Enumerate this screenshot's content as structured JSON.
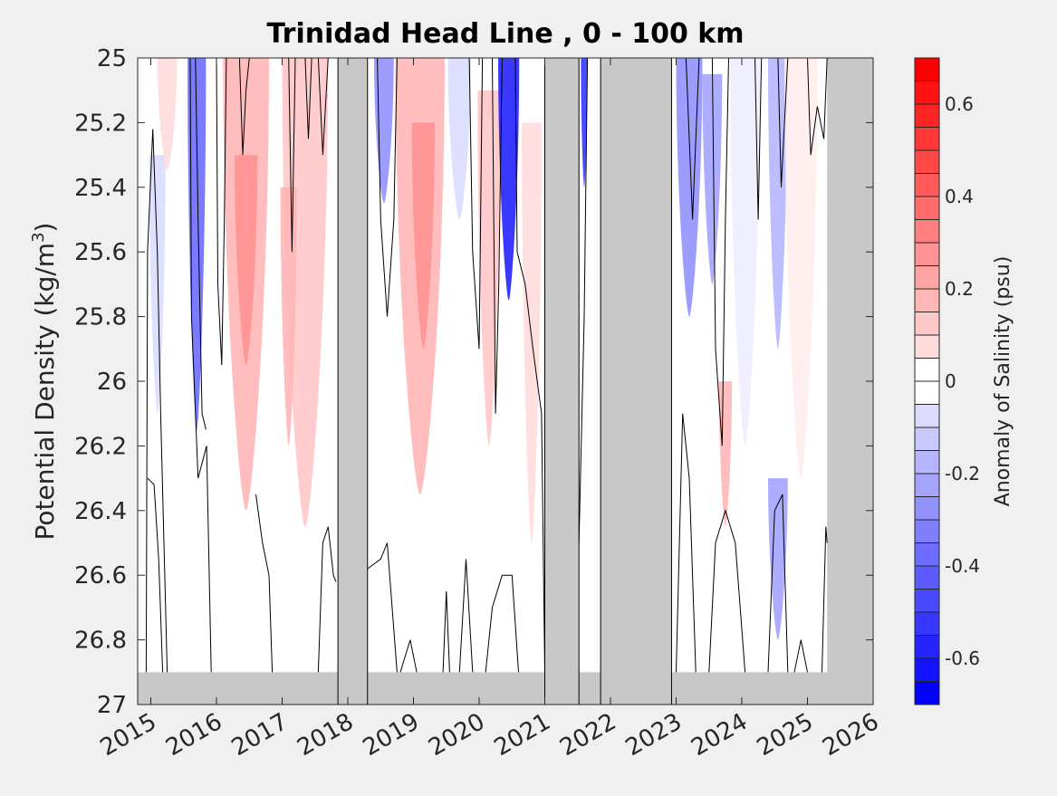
{
  "chart_data": {
    "type": "heatmap",
    "title": "Trinidad Head Line , 0 - 100 km",
    "xlabel": "",
    "ylabel": "Potential Density (kg/m",
    "ylabel_sup": "3",
    "ylabel_close": ")",
    "xlim": [
      2014.8,
      2026.0
    ],
    "ylim": [
      25.0,
      27.0
    ],
    "y_reversed": true,
    "x_ticks": [
      2015,
      2016,
      2017,
      2018,
      2019,
      2020,
      2021,
      2022,
      2023,
      2024,
      2025,
      2026
    ],
    "x_tick_labels": [
      "2015",
      "2016",
      "2017",
      "2018",
      "2019",
      "2020",
      "2021",
      "2022",
      "2023",
      "2024",
      "2025",
      "2026"
    ],
    "y_ticks": [
      25.0,
      25.2,
      25.4,
      25.6,
      25.8,
      26.0,
      26.2,
      26.4,
      26.6,
      26.8,
      27.0
    ],
    "y_tick_labels": [
      "25",
      "25.2",
      "25.4",
      "25.6",
      "25.8",
      "26",
      "26.2",
      "26.4",
      "26.6",
      "26.8",
      "27"
    ],
    "colorbar": {
      "label": "Anomaly of Salinity (psu)",
      "range": [
        -0.7,
        0.7
      ],
      "step": 0.05,
      "ticks": [
        0.6,
        0.4,
        0.2,
        0,
        -0.2,
        -0.4,
        -0.6
      ],
      "tick_labels": [
        "0.6",
        "0.4",
        "0.2",
        "0",
        "-0.2",
        "-0.4",
        "-0.6"
      ],
      "negative_color": "#0000ff",
      "positive_color": "#ff0000",
      "zero_color": "#ffffff"
    },
    "missing_color": "#c8c8c8",
    "no_data_bottom_density": 26.9,
    "data_gaps": [
      {
        "start": 2017.85,
        "end": 2018.3
      },
      {
        "start": 2021.0,
        "end": 2021.52
      },
      {
        "start": 2021.85,
        "end": 2022.93
      }
    ],
    "no_data_after": 2025.3,
    "anomaly_features": [
      {
        "x_center": 2015.1,
        "x_width": 0.25,
        "y_top": 25.3,
        "y_bottom": 26.1,
        "value": -0.08
      },
      {
        "x_center": 2015.7,
        "x_width": 0.28,
        "y_top": 25.0,
        "y_bottom": 26.15,
        "value": -0.42
      },
      {
        "x_center": 2015.25,
        "x_width": 0.3,
        "y_top": 25.0,
        "y_bottom": 25.35,
        "value": 0.12
      },
      {
        "x_center": 2016.45,
        "x_width": 0.7,
        "y_top": 25.0,
        "y_bottom": 26.4,
        "value": 0.2
      },
      {
        "x_center": 2016.45,
        "x_width": 0.35,
        "y_top": 25.3,
        "y_bottom": 25.95,
        "value": 0.3
      },
      {
        "x_center": 2017.35,
        "x_width": 0.7,
        "y_top": 25.0,
        "y_bottom": 26.45,
        "value": 0.15
      },
      {
        "x_center": 2017.1,
        "x_width": 0.25,
        "y_top": 25.4,
        "y_bottom": 26.2,
        "value": 0.22
      },
      {
        "x_center": 2018.55,
        "x_width": 0.3,
        "y_top": 25.0,
        "y_bottom": 25.45,
        "value": -0.28
      },
      {
        "x_center": 2019.1,
        "x_width": 0.75,
        "y_top": 25.0,
        "y_bottom": 26.35,
        "value": 0.18
      },
      {
        "x_center": 2019.15,
        "x_width": 0.35,
        "y_top": 25.2,
        "y_bottom": 25.9,
        "value": 0.3
      },
      {
        "x_center": 2019.7,
        "x_width": 0.35,
        "y_top": 25.0,
        "y_bottom": 25.5,
        "value": -0.12
      },
      {
        "x_center": 2020.15,
        "x_width": 0.35,
        "y_top": 25.1,
        "y_bottom": 26.2,
        "value": 0.14
      },
      {
        "x_center": 2020.45,
        "x_width": 0.32,
        "y_top": 25.0,
        "y_bottom": 25.75,
        "value": -0.6
      },
      {
        "x_center": 2020.8,
        "x_width": 0.3,
        "y_top": 25.2,
        "y_bottom": 26.5,
        "value": 0.1
      },
      {
        "x_center": 2021.6,
        "x_width": 0.1,
        "y_top": 25.0,
        "y_bottom": 25.4,
        "value": -0.55
      },
      {
        "x_center": 2023.2,
        "x_width": 0.4,
        "y_top": 25.0,
        "y_bottom": 25.8,
        "value": -0.3
      },
      {
        "x_center": 2023.55,
        "x_width": 0.3,
        "y_top": 25.05,
        "y_bottom": 25.7,
        "value": -0.25
      },
      {
        "x_center": 2023.75,
        "x_width": 0.2,
        "y_top": 26.0,
        "y_bottom": 26.45,
        "value": 0.2
      },
      {
        "x_center": 2024.05,
        "x_width": 0.45,
        "y_top": 25.0,
        "y_bottom": 26.2,
        "value": -0.05
      },
      {
        "x_center": 2024.55,
        "x_width": 0.3,
        "y_top": 25.0,
        "y_bottom": 25.9,
        "value": -0.2
      },
      {
        "x_center": 2024.55,
        "x_width": 0.3,
        "y_top": 26.3,
        "y_bottom": 26.8,
        "value": -0.25
      },
      {
        "x_center": 2024.9,
        "x_width": 0.5,
        "y_top": 25.0,
        "y_bottom": 26.3,
        "value": 0.06
      }
    ],
    "zero_contours": [
      [
        [
          2014.93,
          26.9
        ],
        [
          2014.95,
          25.6
        ],
        [
          2015.03,
          25.22
        ],
        [
          2015.1,
          25.6
        ],
        [
          2015.15,
          26.1
        ],
        [
          2015.2,
          26.5
        ],
        [
          2015.25,
          26.9
        ]
      ],
      [
        [
          2014.95,
          26.3
        ],
        [
          2015.05,
          26.32
        ],
        [
          2015.12,
          26.55
        ],
        [
          2015.18,
          26.9
        ]
      ],
      [
        [
          2015.6,
          25.0
        ],
        [
          2015.62,
          25.8
        ],
        [
          2015.72,
          26.3
        ],
        [
          2015.85,
          26.2
        ],
        [
          2015.92,
          26.9
        ]
      ],
      [
        [
          2015.68,
          25.0
        ],
        [
          2015.72,
          25.5
        ],
        [
          2015.78,
          26.1
        ],
        [
          2015.84,
          26.15
        ]
      ],
      [
        [
          2016.0,
          25.0
        ],
        [
          2016.02,
          25.7
        ],
        [
          2016.08,
          25.95
        ],
        [
          2016.12,
          25.5
        ],
        [
          2016.15,
          25.0
        ]
      ],
      [
        [
          2016.35,
          25.0
        ],
        [
          2016.4,
          25.3
        ],
        [
          2016.45,
          25.1
        ],
        [
          2016.5,
          25.0
        ]
      ],
      [
        [
          2016.6,
          26.35
        ],
        [
          2016.7,
          26.5
        ],
        [
          2016.8,
          26.6
        ],
        [
          2016.85,
          26.9
        ]
      ],
      [
        [
          2017.1,
          25.0
        ],
        [
          2017.15,
          25.6
        ],
        [
          2017.2,
          25.0
        ]
      ],
      [
        [
          2017.35,
          25.0
        ],
        [
          2017.4,
          25.25
        ],
        [
          2017.45,
          25.0
        ]
      ],
      [
        [
          2017.55,
          25.0
        ],
        [
          2017.62,
          25.3
        ],
        [
          2017.7,
          25.0
        ]
      ],
      [
        [
          2017.55,
          26.9
        ],
        [
          2017.62,
          26.5
        ],
        [
          2017.7,
          26.45
        ],
        [
          2017.78,
          26.6
        ],
        [
          2017.82,
          26.62
        ]
      ],
      [
        [
          2018.3,
          26.58
        ],
        [
          2018.5,
          26.55
        ],
        [
          2018.6,
          26.5
        ],
        [
          2018.75,
          26.9
        ]
      ],
      [
        [
          2018.45,
          25.0
        ],
        [
          2018.5,
          25.5
        ],
        [
          2018.6,
          25.8
        ],
        [
          2018.7,
          25.5
        ],
        [
          2018.75,
          25.0
        ]
      ],
      [
        [
          2018.8,
          26.9
        ],
        [
          2018.95,
          26.8
        ],
        [
          2019.05,
          26.9
        ]
      ],
      [
        [
          2019.45,
          26.9
        ],
        [
          2019.5,
          26.65
        ],
        [
          2019.55,
          26.9
        ]
      ],
      [
        [
          2019.7,
          26.9
        ],
        [
          2019.8,
          26.55
        ],
        [
          2019.9,
          26.9
        ]
      ],
      [
        [
          2019.85,
          25.0
        ],
        [
          2019.9,
          25.6
        ],
        [
          2020.0,
          25.9
        ],
        [
          2020.05,
          25.0
        ]
      ],
      [
        [
          2020.2,
          25.0
        ],
        [
          2020.25,
          26.1
        ],
        [
          2020.3,
          25.7
        ],
        [
          2020.35,
          25.0
        ]
      ],
      [
        [
          2020.1,
          26.9
        ],
        [
          2020.2,
          26.7
        ],
        [
          2020.35,
          26.6
        ],
        [
          2020.5,
          26.6
        ],
        [
          2020.6,
          26.9
        ]
      ],
      [
        [
          2020.55,
          25.0
        ],
        [
          2020.58,
          25.6
        ],
        [
          2020.7,
          25.7
        ],
        [
          2020.82,
          25.9
        ],
        [
          2020.95,
          26.1
        ],
        [
          2021.0,
          26.9
        ]
      ],
      [
        [
          2021.52,
          26.5
        ],
        [
          2021.6,
          25.8
        ],
        [
          2021.65,
          25.0
        ]
      ],
      [
        [
          2023.0,
          26.9
        ],
        [
          2023.1,
          26.1
        ],
        [
          2023.2,
          26.3
        ],
        [
          2023.3,
          26.9
        ]
      ],
      [
        [
          2023.15,
          25.0
        ],
        [
          2023.25,
          25.5
        ],
        [
          2023.35,
          25.0
        ]
      ],
      [
        [
          2023.5,
          26.9
        ],
        [
          2023.6,
          26.5
        ],
        [
          2023.75,
          26.4
        ],
        [
          2023.9,
          26.5
        ],
        [
          2024.05,
          26.9
        ]
      ],
      [
        [
          2023.55,
          25.0
        ],
        [
          2023.6,
          25.9
        ],
        [
          2023.7,
          26.2
        ],
        [
          2023.75,
          25.5
        ],
        [
          2023.8,
          25.0
        ]
      ],
      [
        [
          2024.2,
          25.0
        ],
        [
          2024.25,
          25.5
        ],
        [
          2024.3,
          25.0
        ]
      ],
      [
        [
          2024.4,
          26.9
        ],
        [
          2024.5,
          26.4
        ],
        [
          2024.62,
          26.35
        ],
        [
          2024.7,
          26.9
        ]
      ],
      [
        [
          2024.55,
          25.0
        ],
        [
          2024.6,
          25.4
        ],
        [
          2024.7,
          25.0
        ]
      ],
      [
        [
          2024.8,
          26.9
        ],
        [
          2024.9,
          26.8
        ],
        [
          2025.0,
          26.9
        ]
      ],
      [
        [
          2025.0,
          25.0
        ],
        [
          2025.05,
          25.3
        ],
        [
          2025.15,
          25.15
        ],
        [
          2025.25,
          25.25
        ],
        [
          2025.3,
          25.0
        ]
      ],
      [
        [
          2025.22,
          26.9
        ],
        [
          2025.28,
          26.45
        ],
        [
          2025.3,
          26.5
        ]
      ]
    ]
  }
}
